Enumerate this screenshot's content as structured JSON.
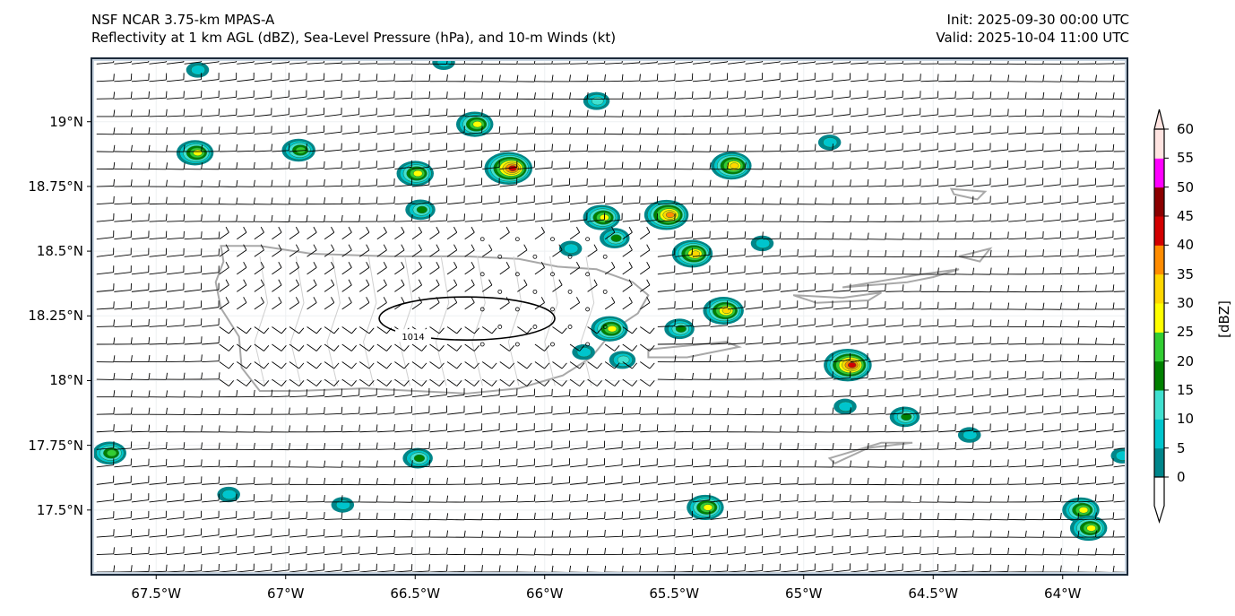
{
  "header": {
    "title_line1": "NSF NCAR 3.75-km MPAS-A",
    "title_line2": "Reflectivity at 1 km AGL (dBZ), Sea-Level Pressure (hPa), and 10-m Winds (kt)",
    "init": "Init: 2025-09-30 00:00 UTC",
    "valid": "Valid: 2025-10-04 11:00 UTC"
  },
  "map": {
    "extent": {
      "lon_min": -67.75,
      "lon_max": -63.75,
      "lat_min": 17.25,
      "lat_max": 19.245
    },
    "lon_ticks": [
      {
        "value": -67.5,
        "label": "67.5°W"
      },
      {
        "value": -67.0,
        "label": "67°W"
      },
      {
        "value": -66.5,
        "label": "66.5°W"
      },
      {
        "value": -66.0,
        "label": "66°W"
      },
      {
        "value": -65.5,
        "label": "65.5°W"
      },
      {
        "value": -65.0,
        "label": "65°W"
      },
      {
        "value": -64.5,
        "label": "64.5°W"
      },
      {
        "value": -64.0,
        "label": "64°W"
      }
    ],
    "lat_ticks": [
      {
        "value": 19.0,
        "label": "19°N"
      },
      {
        "value": 18.75,
        "label": "18.75°N"
      },
      {
        "value": 18.5,
        "label": "18.5°N"
      },
      {
        "value": 18.25,
        "label": "18.25°N"
      },
      {
        "value": 18.0,
        "label": "18°N"
      },
      {
        "value": 17.75,
        "label": "17.75°N"
      },
      {
        "value": 17.5,
        "label": "17.5°N"
      }
    ],
    "pressure_contours": [
      {
        "value": 1014,
        "label": "1014",
        "center_lon": -66.3,
        "center_lat": 18.24
      }
    ],
    "storm_cells": [
      {
        "lon": -67.35,
        "lat": 18.88,
        "peak_dbz": 30
      },
      {
        "lon": -66.95,
        "lat": 18.89,
        "peak_dbz": 25
      },
      {
        "lon": -66.5,
        "lat": 18.8,
        "peak_dbz": 30
      },
      {
        "lon": -66.27,
        "lat": 18.99,
        "peak_dbz": 30
      },
      {
        "lon": -66.14,
        "lat": 18.82,
        "peak_dbz": 45
      },
      {
        "lon": -66.48,
        "lat": 18.66,
        "peak_dbz": 20
      },
      {
        "lon": -65.8,
        "lat": 19.08,
        "peak_dbz": 15
      },
      {
        "lon": -65.28,
        "lat": 18.83,
        "peak_dbz": 35
      },
      {
        "lon": -65.53,
        "lat": 18.64,
        "peak_dbz": 40
      },
      {
        "lon": -65.78,
        "lat": 18.63,
        "peak_dbz": 30
      },
      {
        "lon": -65.73,
        "lat": 18.55,
        "peak_dbz": 20
      },
      {
        "lon": -65.43,
        "lat": 18.49,
        "peak_dbz": 35
      },
      {
        "lon": -65.16,
        "lat": 18.53,
        "peak_dbz": 10
      },
      {
        "lon": -65.31,
        "lat": 18.27,
        "peak_dbz": 35
      },
      {
        "lon": -65.48,
        "lat": 18.2,
        "peak_dbz": 20
      },
      {
        "lon": -65.75,
        "lat": 18.2,
        "peak_dbz": 30
      },
      {
        "lon": -65.85,
        "lat": 18.11,
        "peak_dbz": 10
      },
      {
        "lon": -65.7,
        "lat": 18.08,
        "peak_dbz": 15
      },
      {
        "lon": -64.83,
        "lat": 18.06,
        "peak_dbz": 45
      },
      {
        "lon": -64.84,
        "lat": 17.9,
        "peak_dbz": 10
      },
      {
        "lon": -64.61,
        "lat": 17.86,
        "peak_dbz": 20
      },
      {
        "lon": -64.36,
        "lat": 17.79,
        "peak_dbz": 10
      },
      {
        "lon": -67.68,
        "lat": 17.72,
        "peak_dbz": 25
      },
      {
        "lon": -66.49,
        "lat": 17.7,
        "peak_dbz": 20
      },
      {
        "lon": -67.22,
        "lat": 17.56,
        "peak_dbz": 10
      },
      {
        "lon": -66.78,
        "lat": 17.52,
        "peak_dbz": 10
      },
      {
        "lon": -65.38,
        "lat": 17.51,
        "peak_dbz": 30
      },
      {
        "lon": -63.93,
        "lat": 17.5,
        "peak_dbz": 30
      },
      {
        "lon": -63.9,
        "lat": 17.43,
        "peak_dbz": 30
      },
      {
        "lon": -63.77,
        "lat": 17.71,
        "peak_dbz": 10
      },
      {
        "lon": -67.34,
        "lat": 19.2,
        "peak_dbz": 10
      },
      {
        "lon": -66.39,
        "lat": 19.23,
        "peak_dbz": 10
      },
      {
        "lon": -65.9,
        "lat": 18.51,
        "peak_dbz": 10
      },
      {
        "lon": -64.9,
        "lat": 18.92,
        "peak_dbz": 10
      }
    ]
  },
  "colorbar": {
    "label": "[dBZ]",
    "levels": [
      0,
      5,
      10,
      15,
      20,
      25,
      30,
      35,
      40,
      45,
      50,
      55,
      60
    ],
    "tick_labels": [
      "0",
      "5",
      "10",
      "15",
      "20",
      "25",
      "30",
      "35",
      "40",
      "45",
      "50",
      "55",
      "60"
    ],
    "colors": [
      "#00868b",
      "#00c5cd",
      "#40e0d0",
      "#008000",
      "#32cd32",
      "#ffff00",
      "#ffd700",
      "#ff8c00",
      "#d20000",
      "#8b0000",
      "#ff00ff",
      "#ffe4e1"
    ],
    "under_color": "#ffffff",
    "over_color": "#ffe4e1"
  },
  "colors": {
    "barb": "#000000",
    "coastline": "#a8a8a8",
    "frame": "#1c2a3a",
    "contour": "#000000"
  }
}
